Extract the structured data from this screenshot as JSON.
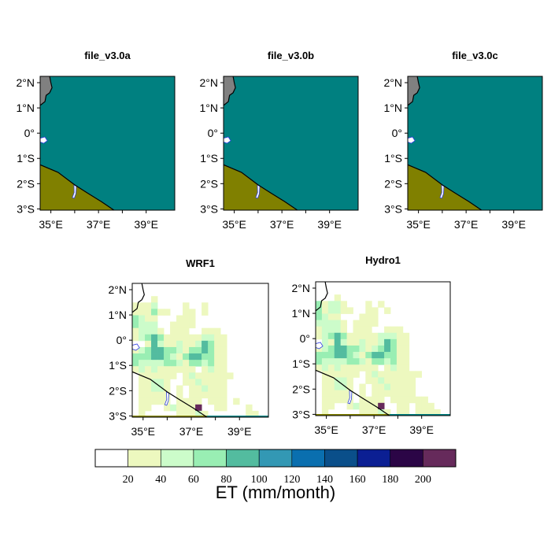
{
  "chart_data": {
    "type": "heatmap",
    "colorbar": {
      "title": "ET (mm/month)",
      "levels": [
        "20",
        "40",
        "60",
        "80",
        "100",
        "120",
        "140",
        "160",
        "180",
        "200"
      ],
      "colors": [
        "#ffffff",
        "#edf8bf",
        "#ccfcca",
        "#99eeb3",
        "#53bc9f",
        "#3398b4",
        "#0a6faf",
        "#0a4f8a",
        "#0b1f93",
        "#2b0546",
        "#662a5b"
      ]
    },
    "lat_ticks": [
      "2°N",
      "1°N",
      "0°",
      "1°S",
      "2°S",
      "3°S"
    ],
    "lon_ticks": [
      "35°E",
      "37°E",
      "39°E"
    ],
    "lon_range": [
      34.55,
      40.2
    ],
    "lat_range": [
      -3.05,
      2.25
    ],
    "colors": {
      "ocean": "#008080",
      "land_south": "#808000",
      "land_nw": "#808080",
      "lake": "#ffffff",
      "lake_edge": "#3040e0"
    },
    "panels_top": [
      {
        "title": "file_v3.0a"
      },
      {
        "title": "file_v3.0b"
      },
      {
        "title": "file_v3.0c"
      }
    ],
    "panels_bottom": [
      {
        "title": "WRF1",
        "grid_class_index_rows": [
          "000000000000000000000",
          "000000000000000000000",
          "000100000000000000000",
          "111200001001000000000",
          "111311001101000000000",
          "321100011100000000000",
          "322200111100000000000",
          "122210111001110000000",
          "123431111112211000000",
          "001421121124311000000",
          "123443321334311000000",
          "333443213443311000000",
          "322223321332311000000",
          "121211111101211000000",
          "011111101211111100000",
          "011221001121111000000",
          "011221010112111000000",
          "011111010111111000000",
          "011111011110111010000",
          "011001211150011000100",
          "010000011121000000110"
        ]
      },
      {
        "title": "Hydro1",
        "grid_class_index_rows": [
          "000000000000000000000",
          "000000000000000000000",
          "000100000000000000000",
          "312210001010000000000",
          "312211001101000000000",
          "321100011100000000000",
          "222210111100000000000",
          "122210111001110000000",
          "123431111122211000000",
          "021421121124311000000",
          "123443321234311000000",
          "333443213443311000000",
          "322223321332311000000",
          "121211111101211000000",
          "011111101211111110000",
          "011221001121111100000",
          "011221010112111100000",
          "011111010111111100000",
          "011111011110111111000",
          "011001211150011011100",
          "010000011121011011110"
        ]
      }
    ]
  }
}
